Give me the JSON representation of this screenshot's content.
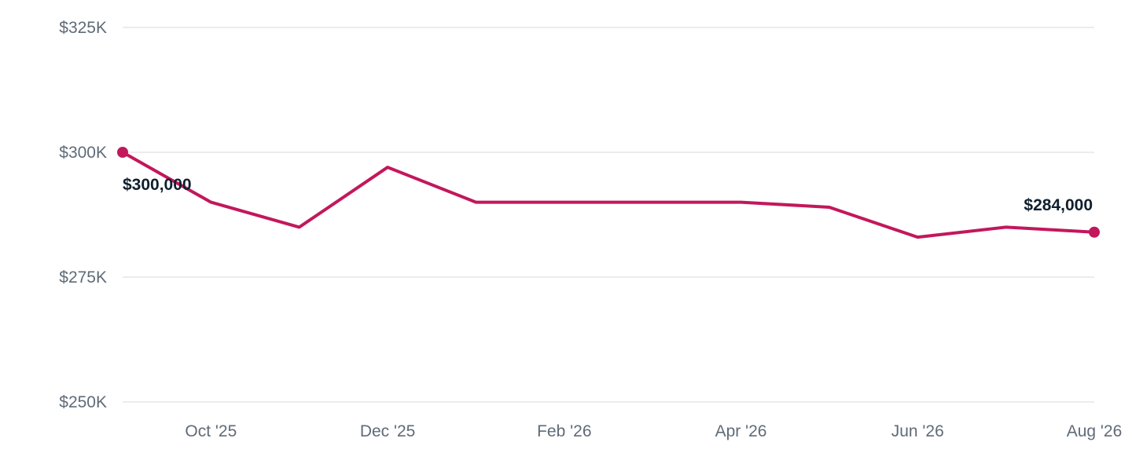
{
  "chart_data": {
    "type": "line",
    "x": [
      "Sep '25",
      "Oct '25",
      "Nov '25",
      "Dec '25",
      "Jan '26",
      "Feb '26",
      "Mar '26",
      "Apr '26",
      "May '26",
      "Jun '26",
      "Jul '26",
      "Aug '26"
    ],
    "series": [
      {
        "values": [
          300000,
          290000,
          285000,
          297000,
          290000,
          290000,
          290000,
          290000,
          289000,
          283000,
          285000,
          284000
        ],
        "color": "#c2185b"
      }
    ],
    "x_tick_labels": [
      {
        "label": "Oct '25",
        "x": "Oct '25"
      },
      {
        "label": "Dec '25",
        "x": "Dec '25"
      },
      {
        "label": "Feb '26",
        "x": "Feb '26"
      },
      {
        "label": "Apr '26",
        "x": "Apr '26"
      },
      {
        "label": "Jun '26",
        "x": "Jun '26"
      },
      {
        "label": "Aug '26",
        "x": "Aug '26"
      }
    ],
    "y_ticks": [
      {
        "value": 325000,
        "label": "$325K"
      },
      {
        "value": 300000,
        "label": "$300K"
      },
      {
        "value": 275000,
        "label": "$275K"
      },
      {
        "value": 250000,
        "label": "$250K"
      }
    ],
    "ylim": [
      250000,
      325000
    ],
    "grid": true,
    "data_labels": [
      {
        "x": "Sep '25",
        "value": 300000,
        "text": "$300,000"
      },
      {
        "x": "Aug '26",
        "value": 284000,
        "text": "$284,000"
      }
    ],
    "title": "",
    "xlabel": "",
    "ylabel": ""
  }
}
